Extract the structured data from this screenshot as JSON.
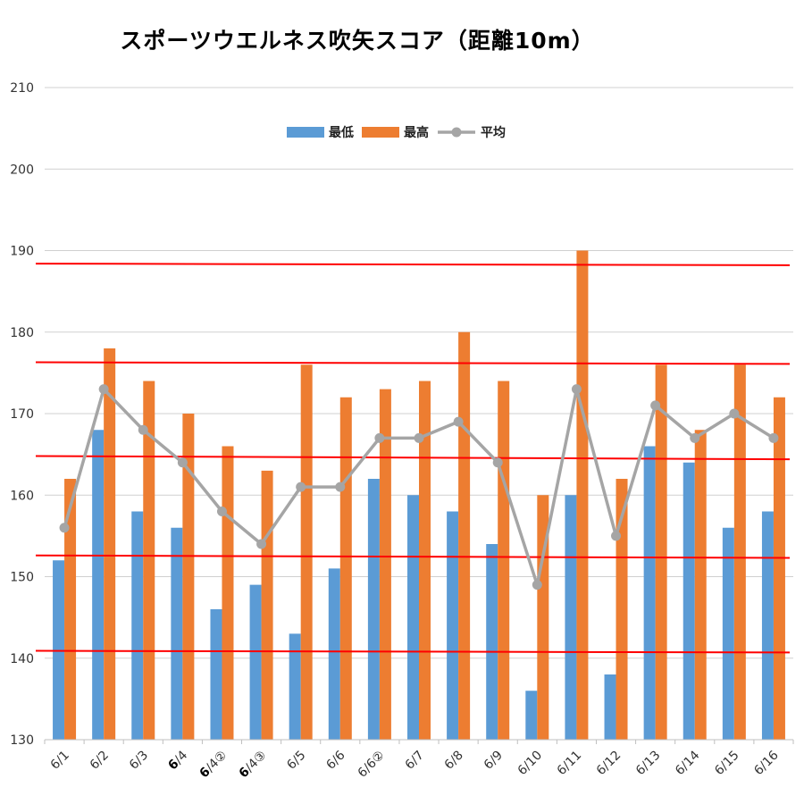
{
  "chart_data": {
    "type": "bar",
    "title": "スポーツウエルネス吹矢スコア（距離10m）",
    "xlabel": "",
    "ylabel": "",
    "ylim": [
      130,
      210
    ],
    "yticks": [
      130,
      140,
      150,
      160,
      170,
      180,
      190,
      200,
      210
    ],
    "grid": true,
    "legend_position": "top",
    "categories": [
      "6/1",
      "6/2",
      "6/3",
      "6/4",
      "6/4②",
      "6/4③",
      "6/5",
      "6/6",
      "6/6②",
      "6/7",
      "6/8",
      "6/9",
      "6/10",
      "6/11",
      "6/12",
      "6/13",
      "6/14",
      "6/15",
      "6/16"
    ],
    "bold_categories": [
      "6/4",
      "6/4②",
      "6/4③"
    ],
    "series": [
      {
        "name": "最低",
        "type": "bar",
        "color": "#5b9bd5",
        "values": [
          152,
          168,
          158,
          156,
          146,
          149,
          143,
          151,
          162,
          160,
          158,
          154,
          136,
          160,
          138,
          166,
          164,
          156,
          158
        ]
      },
      {
        "name": "最高",
        "type": "bar",
        "color": "#ed7d31",
        "values": [
          162,
          178,
          174,
          170,
          166,
          163,
          176,
          172,
          173,
          174,
          180,
          174,
          160,
          190,
          162,
          176,
          168,
          176,
          172
        ]
      },
      {
        "name": "平均",
        "type": "line",
        "color": "#a5a5a5",
        "values": [
          156,
          173,
          168,
          164,
          158,
          154,
          161,
          161,
          167,
          167,
          169,
          164,
          149,
          173,
          155,
          171,
          167,
          170,
          167
        ]
      }
    ],
    "reference_lines": {
      "color": "#ff0000",
      "values": [
        [
          188.4,
          188.2
        ],
        [
          176.3,
          176.1
        ],
        [
          164.8,
          164.4
        ],
        [
          152.6,
          152.3
        ],
        [
          140.9,
          140.7
        ]
      ]
    }
  }
}
